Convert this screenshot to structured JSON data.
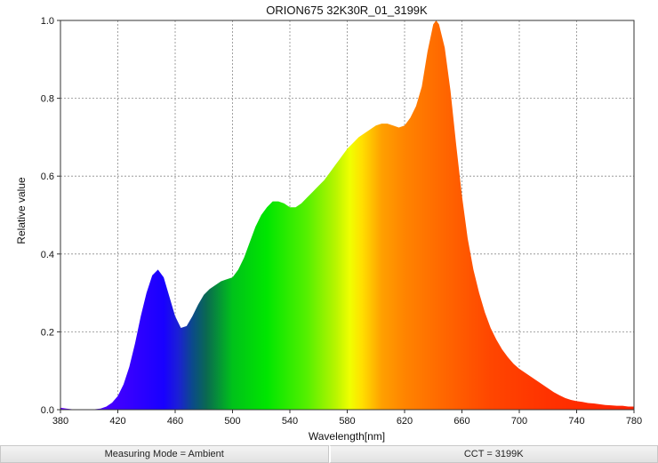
{
  "chart_data": {
    "type": "area",
    "title": "ORION675 32K30R_01_3199K",
    "xlabel": "Wavelength[nm]",
    "ylabel": "Relative value",
    "xlim": [
      380,
      780
    ],
    "ylim": [
      0,
      1.0
    ],
    "x_ticks": [
      380,
      420,
      460,
      500,
      540,
      580,
      620,
      660,
      700,
      740,
      780
    ],
    "y_ticks": [
      "0.0",
      "0.2",
      "0.4",
      "0.6",
      "0.8",
      "1.0"
    ],
    "grid": true,
    "fill": "visible-spectrum-gradient",
    "x": [
      380,
      384,
      388,
      392,
      396,
      400,
      404,
      408,
      412,
      416,
      420,
      424,
      428,
      432,
      436,
      440,
      444,
      448,
      452,
      456,
      460,
      464,
      468,
      472,
      476,
      480,
      484,
      488,
      492,
      496,
      500,
      504,
      508,
      512,
      516,
      520,
      524,
      528,
      532,
      536,
      540,
      544,
      548,
      552,
      556,
      560,
      564,
      568,
      572,
      576,
      580,
      584,
      588,
      592,
      596,
      600,
      604,
      608,
      612,
      616,
      620,
      624,
      628,
      632,
      636,
      640,
      642,
      644,
      648,
      652,
      656,
      660,
      664,
      668,
      672,
      676,
      680,
      684,
      688,
      692,
      696,
      700,
      704,
      708,
      712,
      716,
      720,
      724,
      728,
      732,
      736,
      740,
      744,
      748,
      752,
      756,
      760,
      764,
      768,
      772,
      776,
      780
    ],
    "y": [
      0.005,
      0.003,
      0.001,
      0.0,
      0.0,
      0.0,
      0.001,
      0.003,
      0.008,
      0.018,
      0.035,
      0.065,
      0.11,
      0.17,
      0.24,
      0.3,
      0.345,
      0.36,
      0.34,
      0.29,
      0.24,
      0.21,
      0.215,
      0.24,
      0.27,
      0.295,
      0.31,
      0.32,
      0.33,
      0.335,
      0.34,
      0.36,
      0.39,
      0.43,
      0.47,
      0.5,
      0.52,
      0.535,
      0.535,
      0.53,
      0.52,
      0.52,
      0.53,
      0.545,
      0.56,
      0.575,
      0.59,
      0.61,
      0.63,
      0.65,
      0.67,
      0.685,
      0.7,
      0.71,
      0.72,
      0.73,
      0.735,
      0.735,
      0.73,
      0.725,
      0.73,
      0.75,
      0.78,
      0.83,
      0.92,
      0.99,
      1.0,
      0.99,
      0.93,
      0.82,
      0.68,
      0.55,
      0.44,
      0.36,
      0.3,
      0.25,
      0.21,
      0.18,
      0.155,
      0.135,
      0.118,
      0.105,
      0.095,
      0.085,
      0.075,
      0.065,
      0.055,
      0.045,
      0.037,
      0.03,
      0.025,
      0.022,
      0.02,
      0.017,
      0.016,
      0.014,
      0.012,
      0.011,
      0.01,
      0.01,
      0.008,
      0.008
    ]
  },
  "footer": {
    "measuring_mode": "Measuring Mode = Ambient",
    "cct": "CCT = 3199K"
  }
}
